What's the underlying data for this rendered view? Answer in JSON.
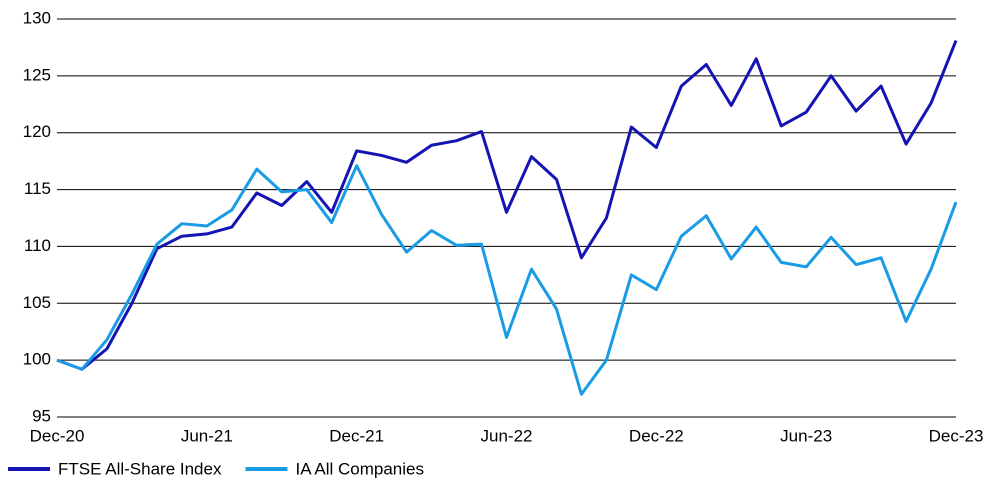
{
  "chart_data": {
    "type": "line",
    "categories": [
      "Dec-20",
      null,
      null,
      null,
      null,
      null,
      "Jun-21",
      null,
      null,
      null,
      null,
      null,
      "Dec-21",
      null,
      null,
      null,
      null,
      null,
      "Jun-22",
      null,
      null,
      null,
      null,
      null,
      "Dec-22",
      null,
      null,
      null,
      null,
      null,
      "Jun-23",
      null,
      null,
      null,
      null,
      null,
      "Dec-23"
    ],
    "series": [
      {
        "name": "FTSE All-Share Index",
        "color": "#1414b4",
        "values": [
          100,
          99.2,
          101,
          105,
          109.8,
          110.9,
          111.1,
          111.7,
          114.7,
          113.6,
          115.7,
          113,
          118.4,
          118,
          117.4,
          118.9,
          119.3,
          120.1,
          113,
          117.9,
          115.9,
          109,
          112.5,
          120.5,
          118.7,
          124.1,
          126,
          122.4,
          126.5,
          120.6,
          121.8,
          125,
          121.9,
          124.1,
          119,
          122.6,
          128.1
        ]
      },
      {
        "name": "IA All Companies",
        "color": "#1a9be6",
        "values": [
          100,
          99.2,
          101.8,
          105.8,
          110.2,
          112,
          111.8,
          113.2,
          116.8,
          114.8,
          115,
          112.1,
          117.1,
          112.8,
          109.5,
          111.4,
          110.1,
          110.2,
          102,
          108,
          104.5,
          97,
          100,
          107.5,
          106.2,
          110.9,
          112.7,
          108.9,
          111.7,
          108.6,
          108.2,
          110.8,
          108.4,
          109,
          103.4,
          108,
          113.9
        ]
      }
    ],
    "ylim": [
      95,
      130
    ],
    "yticks": [
      95,
      100,
      105,
      110,
      115,
      120,
      125,
      130
    ],
    "grid": true,
    "legend": "bottom-left"
  }
}
